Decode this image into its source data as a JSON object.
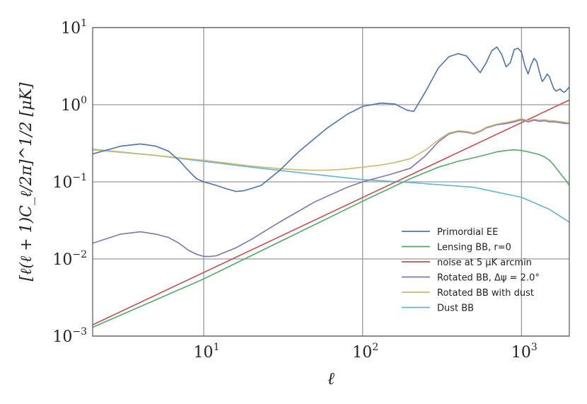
{
  "chart_data": {
    "type": "line",
    "title": "",
    "xlabel": "ℓ",
    "ylabel": "[ℓ(ℓ + 1)C_ℓ/2π]^1/2 [μK]",
    "xscale": "log",
    "yscale": "log",
    "xlim": [
      2,
      2000
    ],
    "ylim": [
      0.001,
      10
    ],
    "grid": true,
    "legend_position": "lower-right",
    "x_ticks": [
      {
        "value": 10,
        "base": "10",
        "exp": "1"
      },
      {
        "value": 100,
        "base": "10",
        "exp": "2"
      },
      {
        "value": 1000,
        "base": "10",
        "exp": "3"
      }
    ],
    "y_ticks": [
      {
        "value": 10,
        "base": "10",
        "exp": "1"
      },
      {
        "value": 1,
        "base": "10",
        "exp": "0"
      },
      {
        "value": 0.1,
        "base": "10",
        "exp": "−1"
      },
      {
        "value": 0.01,
        "base": "10",
        "exp": "−2"
      },
      {
        "value": 0.001,
        "base": "10",
        "exp": "−3"
      }
    ],
    "series": [
      {
        "name": "Primordial EE",
        "color": "#4c72b0",
        "x": [
          2,
          3,
          4,
          5,
          6,
          7,
          8,
          9,
          10,
          12,
          14,
          16,
          18,
          20,
          23,
          30,
          40,
          60,
          80,
          100,
          130,
          160,
          190,
          210,
          250,
          300,
          350,
          400,
          450,
          500,
          550,
          600,
          650,
          700,
          750,
          800,
          850,
          900,
          950,
          1000,
          1050,
          1100,
          1150,
          1200,
          1250,
          1300,
          1350,
          1400,
          1450,
          1500,
          1550,
          1600,
          1650,
          1700,
          1750,
          1800,
          1850,
          1900,
          1950,
          2000
        ],
        "y": [
          0.23,
          0.29,
          0.31,
          0.29,
          0.25,
          0.19,
          0.14,
          0.11,
          0.1,
          0.09,
          0.081,
          0.075,
          0.077,
          0.082,
          0.09,
          0.14,
          0.25,
          0.5,
          0.75,
          0.95,
          1.05,
          1.02,
          0.85,
          0.82,
          1.5,
          3.0,
          4.2,
          4.6,
          4.3,
          3.3,
          2.6,
          3.5,
          5.0,
          5.6,
          4.5,
          3.1,
          3.5,
          5.2,
          5.4,
          4.8,
          3.2,
          2.5,
          3.3,
          4.0,
          3.6,
          2.6,
          2.0,
          2.2,
          2.5,
          2.3,
          1.9,
          1.6,
          1.5,
          1.55,
          1.6,
          1.5,
          1.45,
          1.5,
          1.6,
          1.7
        ]
      },
      {
        "name": "Lensing BB, r=0",
        "color": "#55a868",
        "x": [
          2,
          10,
          100,
          200,
          300,
          400,
          500,
          600,
          700,
          800,
          900,
          1000,
          1100,
          1200,
          1300,
          1400,
          1500,
          1600,
          1700,
          1800,
          1900,
          2000
        ],
        "y": [
          0.0013,
          0.0055,
          0.056,
          0.11,
          0.155,
          0.185,
          0.205,
          0.225,
          0.245,
          0.255,
          0.26,
          0.255,
          0.245,
          0.235,
          0.225,
          0.21,
          0.19,
          0.165,
          0.14,
          0.12,
          0.105,
          0.09
        ]
      },
      {
        "name": "noise at 5 μK arcmin",
        "color": "#c44e52",
        "x": [
          2,
          2000
        ],
        "y": [
          0.0014,
          1.15
        ]
      },
      {
        "name": "Rotated BB, Δψ = 2.0°",
        "color": "#8172b2",
        "x": [
          2,
          3,
          4,
          5,
          6,
          7,
          8,
          9,
          10,
          11,
          12,
          14,
          16,
          20,
          30,
          50,
          80,
          100,
          150,
          200,
          250,
          300,
          350,
          400,
          450,
          500,
          550,
          600,
          700,
          800,
          900,
          1000,
          1100,
          1200,
          1300,
          1400,
          1500,
          1600,
          1700,
          1800,
          1900,
          2000
        ],
        "y": [
          0.016,
          0.021,
          0.0225,
          0.021,
          0.019,
          0.016,
          0.013,
          0.0115,
          0.0108,
          0.0108,
          0.011,
          0.0125,
          0.014,
          0.018,
          0.03,
          0.055,
          0.085,
          0.1,
          0.125,
          0.15,
          0.22,
          0.33,
          0.42,
          0.45,
          0.44,
          0.42,
          0.45,
          0.5,
          0.55,
          0.57,
          0.6,
          0.64,
          0.6,
          0.63,
          0.61,
          0.62,
          0.6,
          0.6,
          0.59,
          0.58,
          0.57,
          0.57
        ]
      },
      {
        "name": "Rotated BB with dust",
        "color": "#ccb974",
        "x": [
          2,
          5,
          10,
          20,
          30,
          40,
          50,
          60,
          70,
          80,
          100,
          130,
          160,
          200,
          250,
          300,
          350,
          400,
          450,
          500,
          550,
          600,
          700,
          800,
          900,
          1000,
          1100,
          1200,
          1300,
          1400,
          1500,
          1600,
          1700,
          1800,
          1900,
          2000
        ],
        "y": [
          0.26,
          0.22,
          0.19,
          0.16,
          0.148,
          0.143,
          0.141,
          0.142,
          0.144,
          0.147,
          0.155,
          0.165,
          0.178,
          0.2,
          0.26,
          0.35,
          0.43,
          0.46,
          0.45,
          0.43,
          0.46,
          0.51,
          0.56,
          0.59,
          0.62,
          0.66,
          0.62,
          0.65,
          0.63,
          0.64,
          0.62,
          0.62,
          0.61,
          0.6,
          0.59,
          0.58
        ]
      },
      {
        "name": "Dust BB",
        "color": "#64b5cd",
        "x": [
          2,
          5,
          10,
          20,
          50,
          100,
          200,
          500,
          1000,
          1500,
          2000
        ],
        "y": [
          0.265,
          0.22,
          0.185,
          0.155,
          0.125,
          0.107,
          0.098,
          0.085,
          0.063,
          0.044,
          0.03
        ]
      }
    ]
  }
}
